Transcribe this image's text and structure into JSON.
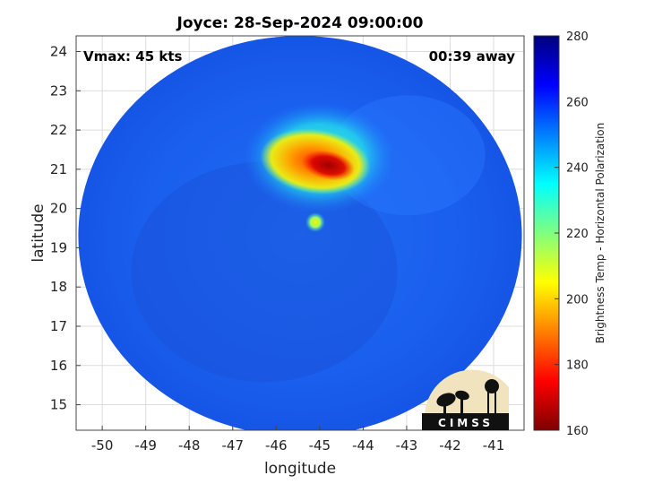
{
  "chart_data": {
    "type": "heatmap",
    "title": "Joyce: 28-Sep-2024 09:00:00",
    "xlabel": "longitude",
    "ylabel": "latitude",
    "xlim": [
      -50.6,
      -40.3
    ],
    "ylim": [
      14.35,
      24.4
    ],
    "x_ticks": [
      -50,
      -49,
      -48,
      -47,
      -46,
      -45,
      -44,
      -43,
      -42,
      -41
    ],
    "y_ticks": [
      15,
      16,
      17,
      18,
      19,
      20,
      21,
      22,
      23,
      24
    ],
    "grid": true,
    "annotations": {
      "vmax": "Vmax: 45 kts",
      "away": "00:39 away"
    },
    "colorbar": {
      "label": "Brightness Temp - Horizontal Polarization",
      "range": [
        160,
        280
      ],
      "ticks": [
        160,
        180,
        200,
        220,
        240,
        260,
        280
      ],
      "colormap": "jet"
    },
    "swath": {
      "center_lon": -45.45,
      "center_lat": 19.3,
      "radius_deg": 5.1
    },
    "features": [
      {
        "label": "background",
        "lon": -45.45,
        "lat": 19.3,
        "value": 261
      },
      {
        "label": "warm-core",
        "lon": -45.0,
        "lat": 21.3,
        "value": 255
      },
      {
        "label": "convection",
        "lon": -45.1,
        "lat": 21.2,
        "value": 198
      },
      {
        "label": "cold-core",
        "lon": -44.8,
        "lat": 21.1,
        "value": 176
      },
      {
        "label": "eye-spot",
        "lon": -45.1,
        "lat": 19.65,
        "value": 215
      }
    ],
    "logo": {
      "text": "CIMSS"
    }
  }
}
